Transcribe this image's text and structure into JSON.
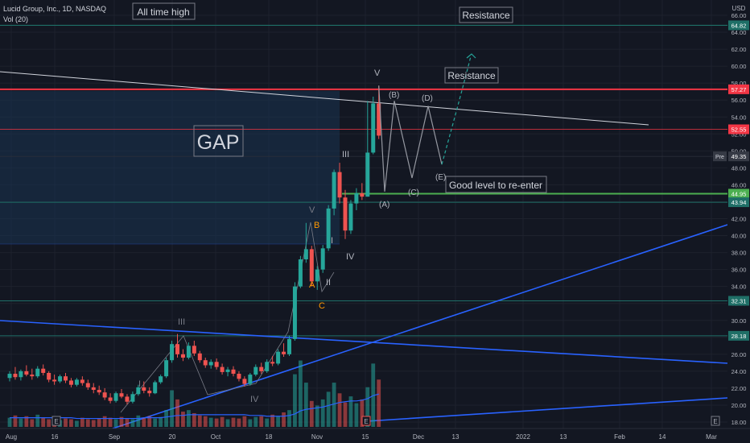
{
  "header": {
    "title": "Lucid Group, Inc., 1D, NASDAQ",
    "vol_label": "Vol (20)",
    "currency": "USD"
  },
  "colors": {
    "bg": "#131722",
    "grid": "#1e222d",
    "up": "#26a69a",
    "down": "#ef5350",
    "blue": "#2962ff",
    "teal_line": "#1f6f67",
    "red_line": "#f23645",
    "green_line": "#4caf50",
    "text": "#b2b5be",
    "gap_fill": "#1a3350"
  },
  "annotations": {
    "all_time_high": "All time high",
    "resistance_top": "Resistance",
    "resistance_mid": "Resistance",
    "gap": "GAP",
    "re_enter": "Good level to re-enter"
  },
  "wave_labels": {
    "V_top": "V",
    "B_paren": "(B)",
    "D_paren": "(D)",
    "A_paren": "(A)",
    "C_paren": "(C)",
    "E_paren": "(E)",
    "III": "III",
    "I": "I",
    "II": "II",
    "IV": "IV",
    "V_mid": "V",
    "B": "B",
    "A": "A",
    "C": "C",
    "III_left": "III",
    "I_left": "I",
    "IV_left": "IV"
  },
  "price_tags": [
    {
      "value": "64.82",
      "kind": "teal"
    },
    {
      "value": "57.27",
      "kind": "red"
    },
    {
      "value": "52.55",
      "kind": "red"
    },
    {
      "value": "49.35",
      "kind": "gray",
      "prefix": "Pre"
    },
    {
      "value": "44.95",
      "kind": "green"
    },
    {
      "value": "43.94",
      "kind": "teal"
    },
    {
      "value": "32.31",
      "kind": "teal"
    },
    {
      "value": "28.18",
      "kind": "teal"
    }
  ],
  "chart_data": {
    "type": "candlestick",
    "y_axis": {
      "ticks": [
        "66.00",
        "64.00",
        "62.00",
        "60.00",
        "58.00",
        "56.00",
        "54.00",
        "52.00",
        "50.00",
        "48.00",
        "46.00",
        "44.00",
        "42.00",
        "40.00",
        "38.00",
        "36.00",
        "34.00",
        "32.00",
        "30.00",
        "28.00",
        "26.00",
        "24.00",
        "22.00",
        "20.00",
        "18.00"
      ]
    },
    "x_axis": {
      "ticks": [
        "Aug",
        "16",
        "Sep",
        "20",
        "Oct",
        "18",
        "Nov",
        "15",
        "Dec",
        "13",
        "2022",
        "13",
        "Feb",
        "14",
        "Mar"
      ]
    },
    "event_markers": [
      "E",
      "E",
      "E"
    ],
    "horizontal_levels": [
      64.82,
      57.27,
      52.55,
      49.35,
      44.95,
      43.94,
      32.31,
      28.18
    ],
    "candles": [
      {
        "o": 23.2,
        "h": 24.0,
        "l": 22.8,
        "c": 23.7
      },
      {
        "o": 23.7,
        "h": 24.5,
        "l": 23.0,
        "c": 23.3
      },
      {
        "o": 23.3,
        "h": 24.2,
        "l": 22.9,
        "c": 24.0
      },
      {
        "o": 24.0,
        "h": 24.7,
        "l": 23.4,
        "c": 23.6
      },
      {
        "o": 23.6,
        "h": 24.3,
        "l": 23.0,
        "c": 23.4
      },
      {
        "o": 23.4,
        "h": 24.6,
        "l": 23.2,
        "c": 24.3
      },
      {
        "o": 24.3,
        "h": 24.8,
        "l": 23.5,
        "c": 23.8
      },
      {
        "o": 23.8,
        "h": 24.0,
        "l": 22.7,
        "c": 23.0
      },
      {
        "o": 23.0,
        "h": 23.6,
        "l": 22.4,
        "c": 22.8
      },
      {
        "o": 22.8,
        "h": 23.6,
        "l": 22.6,
        "c": 23.4
      },
      {
        "o": 23.4,
        "h": 23.8,
        "l": 22.6,
        "c": 22.9
      },
      {
        "o": 22.9,
        "h": 23.2,
        "l": 22.1,
        "c": 22.4
      },
      {
        "o": 22.4,
        "h": 23.2,
        "l": 22.2,
        "c": 23.0
      },
      {
        "o": 23.0,
        "h": 23.4,
        "l": 22.3,
        "c": 22.6
      },
      {
        "o": 22.6,
        "h": 23.0,
        "l": 21.8,
        "c": 22.1
      },
      {
        "o": 22.1,
        "h": 22.6,
        "l": 21.4,
        "c": 21.8
      },
      {
        "o": 21.8,
        "h": 22.3,
        "l": 21.2,
        "c": 21.5
      },
      {
        "o": 21.5,
        "h": 22.0,
        "l": 20.6,
        "c": 20.9
      },
      {
        "o": 20.9,
        "h": 21.4,
        "l": 20.2,
        "c": 20.5
      },
      {
        "o": 20.5,
        "h": 21.6,
        "l": 20.3,
        "c": 21.4
      },
      {
        "o": 21.4,
        "h": 21.9,
        "l": 20.8,
        "c": 21.0
      },
      {
        "o": 21.0,
        "h": 21.3,
        "l": 20.1,
        "c": 20.4
      },
      {
        "o": 20.4,
        "h": 21.6,
        "l": 20.2,
        "c": 21.3
      },
      {
        "o": 21.3,
        "h": 22.4,
        "l": 21.1,
        "c": 22.1
      },
      {
        "o": 22.1,
        "h": 22.8,
        "l": 21.4,
        "c": 21.7
      },
      {
        "o": 21.7,
        "h": 22.1,
        "l": 21.0,
        "c": 21.4
      },
      {
        "o": 21.4,
        "h": 22.9,
        "l": 21.3,
        "c": 22.7
      },
      {
        "o": 22.7,
        "h": 23.6,
        "l": 22.5,
        "c": 23.4
      },
      {
        "o": 23.4,
        "h": 25.6,
        "l": 23.2,
        "c": 25.3
      },
      {
        "o": 25.3,
        "h": 27.6,
        "l": 25.0,
        "c": 27.2
      },
      {
        "o": 27.2,
        "h": 28.4,
        "l": 25.6,
        "c": 26.0
      },
      {
        "o": 26.0,
        "h": 26.6,
        "l": 25.2,
        "c": 25.6
      },
      {
        "o": 25.6,
        "h": 27.4,
        "l": 25.4,
        "c": 27.0
      },
      {
        "o": 27.0,
        "h": 27.6,
        "l": 25.8,
        "c": 26.1
      },
      {
        "o": 26.1,
        "h": 26.4,
        "l": 25.0,
        "c": 25.3
      },
      {
        "o": 25.3,
        "h": 25.6,
        "l": 24.4,
        "c": 24.7
      },
      {
        "o": 24.7,
        "h": 25.4,
        "l": 24.3,
        "c": 25.1
      },
      {
        "o": 25.1,
        "h": 25.5,
        "l": 24.2,
        "c": 24.5
      },
      {
        "o": 24.5,
        "h": 24.9,
        "l": 23.6,
        "c": 23.9
      },
      {
        "o": 23.9,
        "h": 24.5,
        "l": 23.4,
        "c": 24.2
      },
      {
        "o": 24.2,
        "h": 24.6,
        "l": 23.4,
        "c": 23.7
      },
      {
        "o": 23.7,
        "h": 24.0,
        "l": 22.8,
        "c": 23.1
      },
      {
        "o": 23.1,
        "h": 23.4,
        "l": 22.2,
        "c": 22.5
      },
      {
        "o": 22.5,
        "h": 23.8,
        "l": 22.3,
        "c": 23.6
      },
      {
        "o": 23.6,
        "h": 24.8,
        "l": 23.4,
        "c": 24.5
      },
      {
        "o": 24.5,
        "h": 25.0,
        "l": 23.7,
        "c": 24.0
      },
      {
        "o": 24.0,
        "h": 25.4,
        "l": 23.8,
        "c": 25.1
      },
      {
        "o": 25.1,
        "h": 25.8,
        "l": 24.6,
        "c": 24.9
      },
      {
        "o": 24.9,
        "h": 26.6,
        "l": 24.7,
        "c": 26.3
      },
      {
        "o": 26.3,
        "h": 27.3,
        "l": 25.7,
        "c": 26.0
      },
      {
        "o": 26.0,
        "h": 28.2,
        "l": 25.8,
        "c": 27.8
      },
      {
        "o": 27.8,
        "h": 34.5,
        "l": 27.6,
        "c": 34.0
      },
      {
        "o": 34.0,
        "h": 37.6,
        "l": 33.8,
        "c": 37.2
      },
      {
        "o": 37.2,
        "h": 41.5,
        "l": 36.8,
        "c": 38.4
      },
      {
        "o": 38.4,
        "h": 38.8,
        "l": 34.0,
        "c": 34.6
      },
      {
        "o": 34.6,
        "h": 36.4,
        "l": 33.6,
        "c": 36.0
      },
      {
        "o": 36.0,
        "h": 38.9,
        "l": 35.6,
        "c": 38.5
      },
      {
        "o": 38.5,
        "h": 43.6,
        "l": 38.2,
        "c": 43.2
      },
      {
        "o": 43.2,
        "h": 47.8,
        "l": 42.4,
        "c": 47.5
      },
      {
        "o": 47.5,
        "h": 48.6,
        "l": 43.8,
        "c": 44.5
      },
      {
        "o": 44.5,
        "h": 45.4,
        "l": 39.6,
        "c": 40.6
      },
      {
        "o": 40.6,
        "h": 44.2,
        "l": 40.2,
        "c": 43.8
      },
      {
        "o": 43.8,
        "h": 45.6,
        "l": 43.0,
        "c": 45.0
      },
      {
        "o": 45.0,
        "h": 46.2,
        "l": 44.2,
        "c": 44.6
      },
      {
        "o": 44.6,
        "h": 55.9,
        "l": 44.6,
        "c": 49.8
      },
      {
        "o": 49.8,
        "h": 56.4,
        "l": 49.6,
        "c": 55.6
      },
      {
        "o": 55.6,
        "h": 57.7,
        "l": 51.4,
        "c": 51.8
      }
    ],
    "volume": [
      1.2,
      1.5,
      1.1,
      1.4,
      1.0,
      1.6,
      1.2,
      1.0,
      1.3,
      0.9,
      1.1,
      1.0,
      0.8,
      1.2,
      1.0,
      0.9,
      1.1,
      1.4,
      1.2,
      1.0,
      1.3,
      1.1,
      1.0,
      1.5,
      1.2,
      1.4,
      1.1,
      1.3,
      2.2,
      4.8,
      3.6,
      2.0,
      2.2,
      1.8,
      1.5,
      1.4,
      1.2,
      1.1,
      1.3,
      1.0,
      1.2,
      1.1,
      1.4,
      1.0,
      1.3,
      1.4,
      1.1,
      1.6,
      1.4,
      1.9,
      2.2,
      6.9,
      8.7,
      5.8,
      3.4,
      2.8,
      3.6,
      4.6,
      5.8,
      4.4,
      3.2,
      4.0,
      3.1,
      3.6,
      5.2,
      8.3,
      6.2
    ],
    "vol_ma": [
      1.2,
      1.2,
      1.2,
      1.2,
      1.2,
      1.2,
      1.2,
      1.2,
      1.2,
      1.2,
      1.2,
      1.2,
      1.1,
      1.1,
      1.1,
      1.1,
      1.1,
      1.1,
      1.1,
      1.1,
      1.1,
      1.1,
      1.1,
      1.1,
      1.2,
      1.2,
      1.2,
      1.2,
      1.3,
      1.4,
      1.5,
      1.5,
      1.6,
      1.6,
      1.6,
      1.6,
      1.6,
      1.6,
      1.6,
      1.6,
      1.6,
      1.6,
      1.6,
      1.5,
      1.5,
      1.5,
      1.4,
      1.4,
      1.4,
      1.4,
      1.5,
      1.7,
      2.1,
      2.3,
      2.4,
      2.5,
      2.6,
      2.8,
      3.0,
      3.2,
      3.3,
      3.4,
      3.4,
      3.5,
      3.7,
      4.1,
      4.3
    ],
    "projection_path": [
      {
        "label": "(A)",
        "price": 45.2
      },
      {
        "label": "(B)",
        "price": 55.9
      },
      {
        "label": "(C)",
        "price": 46.8
      },
      {
        "label": "(D)",
        "price": 55.3
      },
      {
        "label": "(E)",
        "price": 48.4
      }
    ]
  }
}
